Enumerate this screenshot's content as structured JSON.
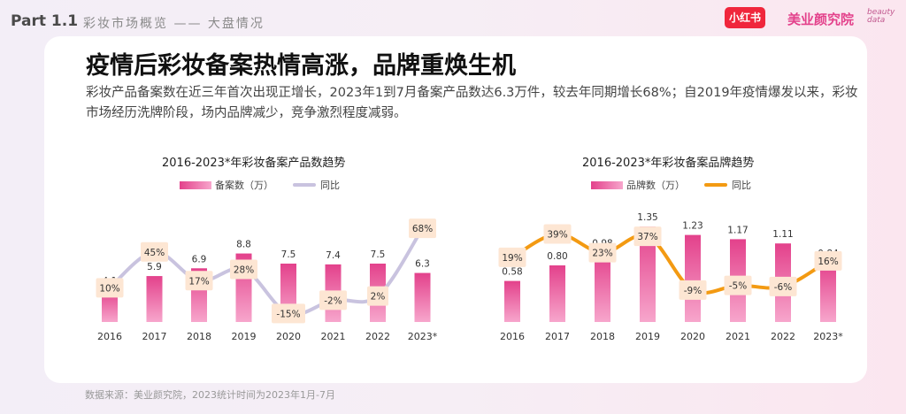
{
  "header": {
    "part": "Part 1.1",
    "section": "彩妆市场概览 —— 大盘情况",
    "logo_xhs": "小红书",
    "logo_brand": "美业颜究院",
    "logo_script_1": "beauty",
    "logo_script_2": "data"
  },
  "main": {
    "title": "疫情后彩妆备案热情高涨，品牌重焕生机",
    "subtitle": "彩妆产品备案数在近三年首次出现正增长，2023年1到7月备案产品数达6.3万件，较去年同期增长68%；自2019年疫情爆发以来，彩妆市场经历洗牌阶段，场内品牌减少，竞争激烈程度减弱。"
  },
  "footer": {
    "source": "数据来源：美业颜究院，2023统计时间为2023年1月-7月"
  },
  "colors": {
    "bar": "#e3418b",
    "line_left": "#c9c3df",
    "line_right": "#f39a12",
    "label_bg": "#fde6d3"
  },
  "chart_data": [
    {
      "type": "bar",
      "title": "2016-2023*年彩妆备案产品数趋势",
      "categories": [
        "2016",
        "2017",
        "2018",
        "2019",
        "2020",
        "2021",
        "2022",
        "2023*"
      ],
      "series": [
        {
          "name": "备案数（万）",
          "type": "bar",
          "values": [
            4.1,
            5.9,
            6.9,
            8.8,
            7.5,
            7.4,
            7.5,
            6.3
          ]
        },
        {
          "name": "同比",
          "type": "line",
          "values": [
            10,
            45,
            17,
            28,
            -15,
            -2,
            2,
            68
          ]
        }
      ],
      "bar_labels": [
        "4.1",
        "5.9",
        "6.9",
        "8.8",
        "7.5",
        "7.4",
        "7.5",
        "6.3"
      ],
      "line_labels": [
        "10%",
        "45%",
        "17%",
        "28%",
        "-15%",
        "-2%",
        "2%",
        "68%"
      ]
    },
    {
      "type": "bar",
      "title": "2016-2023*年彩妆备案品牌趋势",
      "categories": [
        "2016",
        "2017",
        "2018",
        "2019",
        "2020",
        "2021",
        "2022",
        "2023*"
      ],
      "series": [
        {
          "name": "品牌数（万）",
          "type": "bar",
          "values": [
            0.58,
            0.8,
            0.98,
            1.35,
            1.23,
            1.17,
            1.11,
            0.84
          ]
        },
        {
          "name": "同比",
          "type": "line",
          "values": [
            19,
            39,
            23,
            37,
            -9,
            -5,
            -6,
            16
          ]
        }
      ],
      "bar_labels": [
        "0.58",
        "0.80",
        "0.98",
        "1.35",
        "1.23",
        "1.17",
        "1.11",
        "0.84"
      ],
      "line_labels": [
        "19%",
        "39%",
        "23%",
        "37%",
        "-9%",
        "-5%",
        "-6%",
        "16%"
      ]
    }
  ]
}
